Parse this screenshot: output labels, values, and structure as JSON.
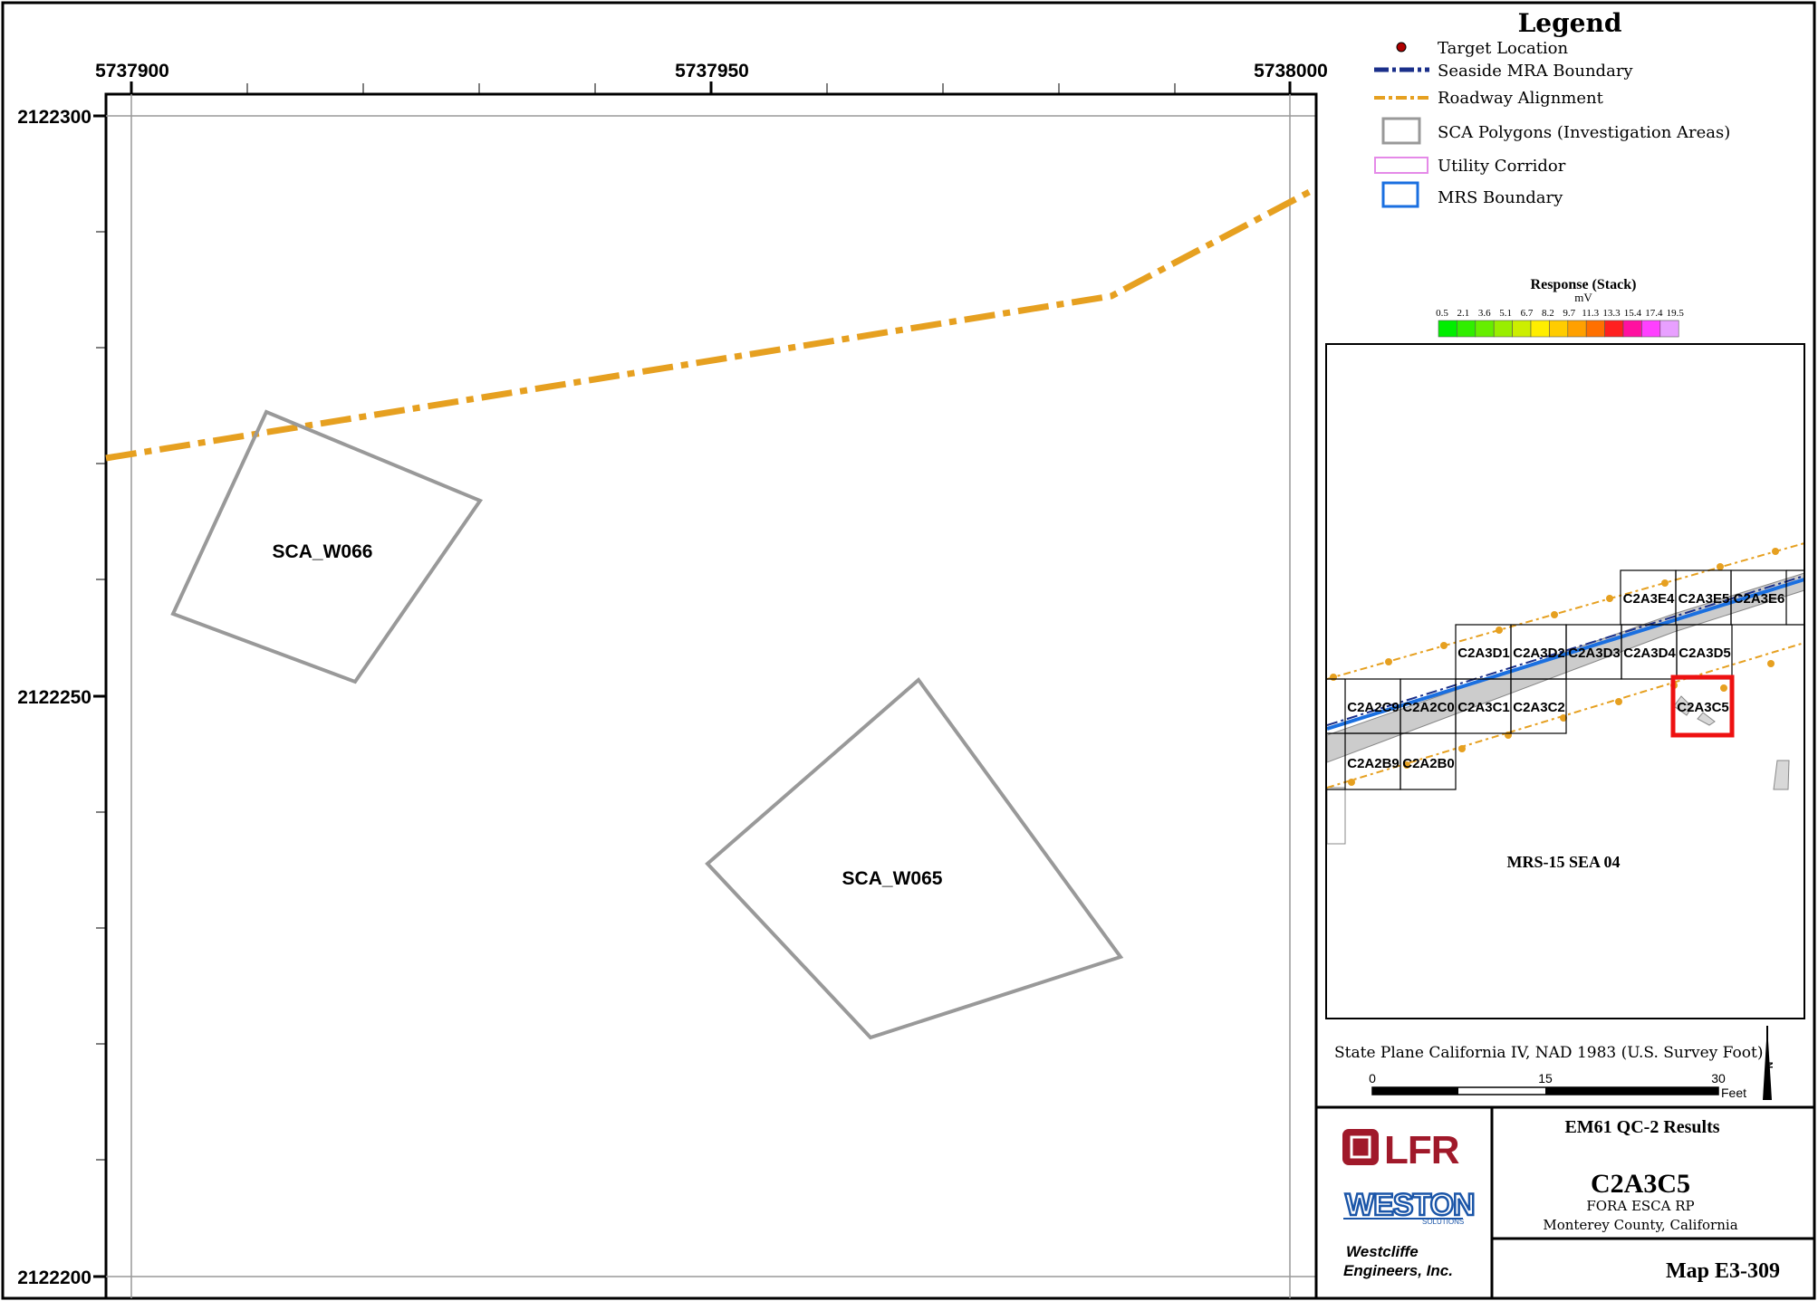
{
  "map": {
    "x_ticks": [
      "5737900",
      "5737950",
      "5738000"
    ],
    "y_ticks": [
      "2122300",
      "2122250",
      "2122200"
    ],
    "polygons": [
      {
        "label": "SCA_W066"
      },
      {
        "label": "SCA_W065"
      }
    ]
  },
  "legend": {
    "title": "Legend",
    "items": [
      {
        "label": "Target Location",
        "symbol": "dot",
        "color": "#b00000"
      },
      {
        "label": "Seaside MRA Boundary",
        "symbol": "dash-dot",
        "color": "#1a2f8a"
      },
      {
        "label": "Roadway Alignment",
        "symbol": "dash-dot",
        "color": "#e6a020"
      },
      {
        "label": "SCA Polygons (Investigation Areas)",
        "symbol": "box",
        "color": "#999999"
      },
      {
        "label": "Utility Corridor",
        "symbol": "box",
        "color": "#e58ae8"
      },
      {
        "label": "MRS Boundary",
        "symbol": "box",
        "color": "#1a6fe0"
      }
    ],
    "response": {
      "title": "Response (Stack)",
      "unit": "mV",
      "ticks": [
        "0.5",
        "2.1",
        "3.6",
        "5.1",
        "6.7",
        "8.2",
        "9.7",
        "11.3",
        "13.3",
        "15.4",
        "17.4",
        "19.5"
      ],
      "colors": [
        "#00ee00",
        "#30ee00",
        "#66ee00",
        "#99ee00",
        "#ccee00",
        "#ffee00",
        "#ffcc00",
        "#ffa000",
        "#ff7000",
        "#ff2020",
        "#ff10a0",
        "#ff40ff",
        "#e8a0ff"
      ]
    }
  },
  "inset": {
    "cells": [
      "C2A3E4",
      "C2A3E5",
      "C2A3E6",
      "C2A3D1",
      "C2A3D2",
      "C2A3D3",
      "C2A3D4",
      "C2A3D5",
      "C2A2C9",
      "C2A2C0",
      "C2A3C1",
      "C2A3C2",
      "C2A3C5",
      "C2A2B9",
      "C2A2B0"
    ],
    "highlight": "C2A3C5",
    "area_label": "MRS-15 SEA 04"
  },
  "scale": {
    "projection": "State Plane California IV, NAD 1983 (U.S. Survey Foot)",
    "ticks": [
      "0",
      "15",
      "30"
    ],
    "unit": "Feet"
  },
  "titleblock": {
    "logo1": "LFR",
    "logo2": "WESTON",
    "logo2_sub": "SOLUTIONS",
    "company_line1": "Westcliffe",
    "company_line2": "Engineers, Inc.",
    "heading": "EM61 QC-2 Results",
    "grid_id": "C2A3C5",
    "project": "FORA ESCA RP",
    "location": "Monterey County, California",
    "map_number": "Map E3-309"
  },
  "colors": {
    "road": "#e6a020",
    "sca": "#999999",
    "mra": "#1a2f8a",
    "mrs": "#1a6fe0",
    "highlight": "#ee1111",
    "lfr_red": "#a0192a",
    "weston_blue": "#1a55a8"
  }
}
